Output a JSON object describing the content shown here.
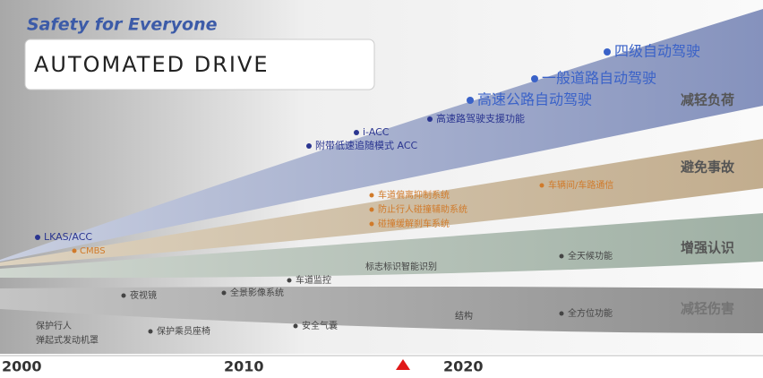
{
  "header": {
    "tagline": "Safety for Everyone",
    "title": "AUTOMATED DRIVE"
  },
  "bands": [
    {
      "label": "减轻负荷",
      "items": [
        "LKAS/ACC",
        "附带低速追随模式 ACC",
        "i-ACC",
        "高速路驾驶支援功能",
        "高速公路自动驾驶",
        "一般道路自动驾驶",
        "四级自动驾驶"
      ]
    },
    {
      "label": "避免事故",
      "items": [
        "CMBS",
        "车道偏离抑制系统",
        "防止行人碰撞辅助系统",
        "碰撞缓解刹车系统",
        "车辆间/车路通信"
      ]
    },
    {
      "label": "增强认识",
      "items": [
        "夜视镜",
        "全景影像系统",
        "车道监控",
        "标志标识智能识别",
        "全天候功能"
      ]
    },
    {
      "label": "减轻伤害",
      "items": [
        "保护行人",
        "弹起式发动机罩",
        "保护乘员座椅",
        "安全气囊",
        "结构",
        "全方位功能"
      ]
    }
  ],
  "timeline": {
    "ticks": [
      "2000",
      "2010",
      "2020"
    ]
  }
}
